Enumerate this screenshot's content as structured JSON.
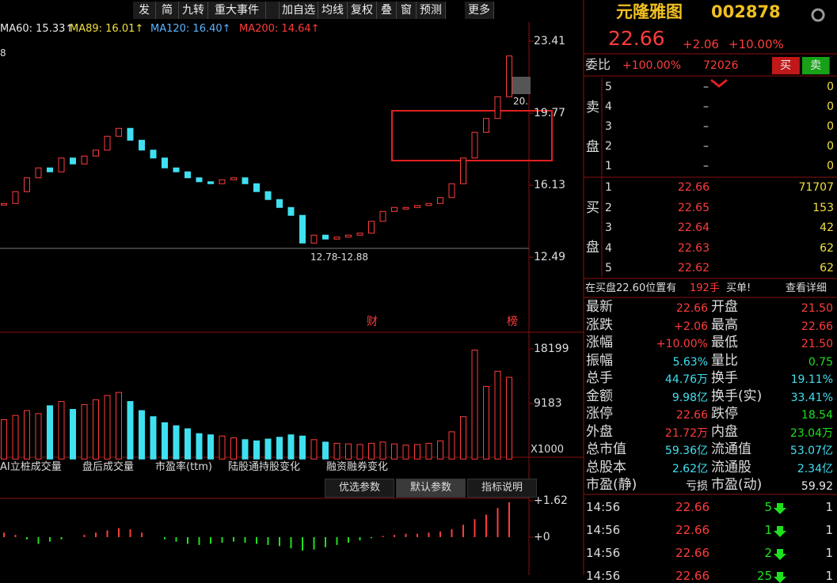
{
  "toolbar": [
    "发",
    "简",
    "九转",
    "重大事件",
    "加自选",
    "均线",
    "复权",
    "叠",
    "窗",
    "预测",
    "更多"
  ],
  "ma_legend": [
    "MA60: 15.33↑",
    "MA89: 16.01↑",
    "MA120: 16.40↑",
    "MA200: 14.64↑"
  ],
  "price_chart": {
    "yticks": [
      23.41,
      19.77,
      16.13,
      12.49
    ],
    "close": [
      15.2,
      15.8,
      16.5,
      17.0,
      16.8,
      17.5,
      17.2,
      17.6,
      17.9,
      18.6,
      19.0,
      18.4,
      17.9,
      17.5,
      17.0,
      16.8,
      16.5,
      16.3,
      16.2,
      16.4,
      16.5,
      16.2,
      15.8,
      15.4,
      15.0,
      14.6,
      13.2,
      13.6,
      13.4,
      13.5,
      13.6,
      13.7,
      14.3,
      14.8,
      15.0,
      15.0,
      15.1,
      15.2,
      15.5,
      16.2,
      17.5,
      18.8,
      19.5,
      20.6,
      22.66
    ],
    "corner_label": "8",
    "last_label": "20.",
    "low_label": "12.78-12.88",
    "markers": [
      "财",
      "榜"
    ]
  },
  "volume_chart": {
    "yticks": [
      18199,
      9183
    ],
    "unit": "X1000",
    "values": [
      6500,
      7200,
      8000,
      7500,
      8800,
      9500,
      8200,
      9000,
      9800,
      10500,
      11000,
      9500,
      8000,
      7000,
      6000,
      5500,
      5000,
      4200,
      4000,
      3800,
      3500,
      3200,
      3000,
      3300,
      3600,
      4000,
      3800,
      3200,
      2800,
      2600,
      2500,
      2400,
      2600,
      2800,
      2500,
      2300,
      2400,
      2600,
      3000,
      4500,
      7000,
      18000,
      12000,
      14500,
      13500
    ]
  },
  "indicator_tabs": [
    "AI立桩成交量",
    "盘后成交量",
    "市盈率(ttm)",
    "陆股通持股变化",
    "融资融券变化"
  ],
  "param_buttons": [
    "优选参数",
    "默认参数",
    "指标说明"
  ],
  "macd_chart": {
    "yticks": [
      {
        "value": 1.62,
        "label": "+1.62"
      },
      {
        "value": 0,
        "label": "+0"
      }
    ],
    "values": [
      0.2,
      0.1,
      -0.1,
      -0.3,
      -0.2,
      -0.1,
      0.0,
      0.1,
      0.2,
      0.3,
      0.4,
      0.35,
      0.2,
      0.0,
      -0.1,
      -0.2,
      -0.3,
      -0.35,
      -0.3,
      -0.25,
      -0.2,
      -0.25,
      -0.3,
      -0.35,
      -0.4,
      -0.5,
      -0.6,
      -0.55,
      -0.45,
      -0.35,
      -0.25,
      -0.15,
      -0.05,
      0.05,
      0.1,
      0.15,
      0.15,
      0.2,
      0.25,
      0.35,
      0.55,
      0.8,
      1.0,
      1.3,
      1.55
    ]
  },
  "quote": {
    "name": "元隆雅图",
    "code": "002878",
    "price": "22.66",
    "change": "+2.06",
    "change_pct": "+10.00%",
    "weibi_label": "委比",
    "weibi": "+100.00%",
    "weicha": "72026",
    "buy_btn": "买",
    "sell_btn": "卖"
  },
  "sell_side_label": [
    "卖",
    "盘"
  ],
  "sell_orders": [
    [
      "5",
      "–",
      "0"
    ],
    [
      "4",
      "–",
      "0"
    ],
    [
      "3",
      "–",
      "0"
    ],
    [
      "2",
      "–",
      "0"
    ],
    [
      "1",
      "–",
      "0"
    ]
  ],
  "buy_side_label": [
    "买",
    "盘"
  ],
  "buy_orders": [
    [
      "1",
      "22.66",
      "71707"
    ],
    [
      "2",
      "22.65",
      "153"
    ],
    [
      "3",
      "22.64",
      "42"
    ],
    [
      "4",
      "22.63",
      "62"
    ],
    [
      "5",
      "22.62",
      "62"
    ]
  ],
  "notice": {
    "prefix": "在买盘22.60位置有",
    "amount": "192手",
    "suffix": "买单!",
    "link": "查看详细"
  },
  "stats": [
    [
      "最新",
      "22.66",
      "开盘",
      "21.50"
    ],
    [
      "涨跌",
      "+2.06",
      "最高",
      "22.66"
    ],
    [
      "涨幅",
      "+10.00%",
      "最低",
      "21.50"
    ],
    [
      "振幅",
      "5.63%",
      "量比",
      "0.75"
    ],
    [
      "总手",
      "44.76万",
      "换手",
      "19.11%"
    ],
    [
      "金额",
      "9.98亿",
      "换手(实)",
      "33.41%"
    ],
    [
      "涨停",
      "22.66",
      "跌停",
      "18.54"
    ],
    [
      "外盘",
      "21.72万",
      "内盘",
      "23.04万"
    ],
    [
      "总市值",
      "59.36亿",
      "流通值",
      "53.07亿"
    ],
    [
      "总股本",
      "2.62亿",
      "流通股",
      "2.34亿"
    ],
    [
      "市盈(静)",
      "亏损",
      "市盈(动)",
      "59.92"
    ]
  ],
  "ticks": [
    [
      "14:56",
      "22.66",
      "5",
      "1"
    ],
    [
      "14:56",
      "22.66",
      "1",
      "1"
    ],
    [
      "14:56",
      "22.66",
      "2",
      "1"
    ],
    [
      "14:56",
      "22.66",
      "25",
      "1"
    ]
  ]
}
